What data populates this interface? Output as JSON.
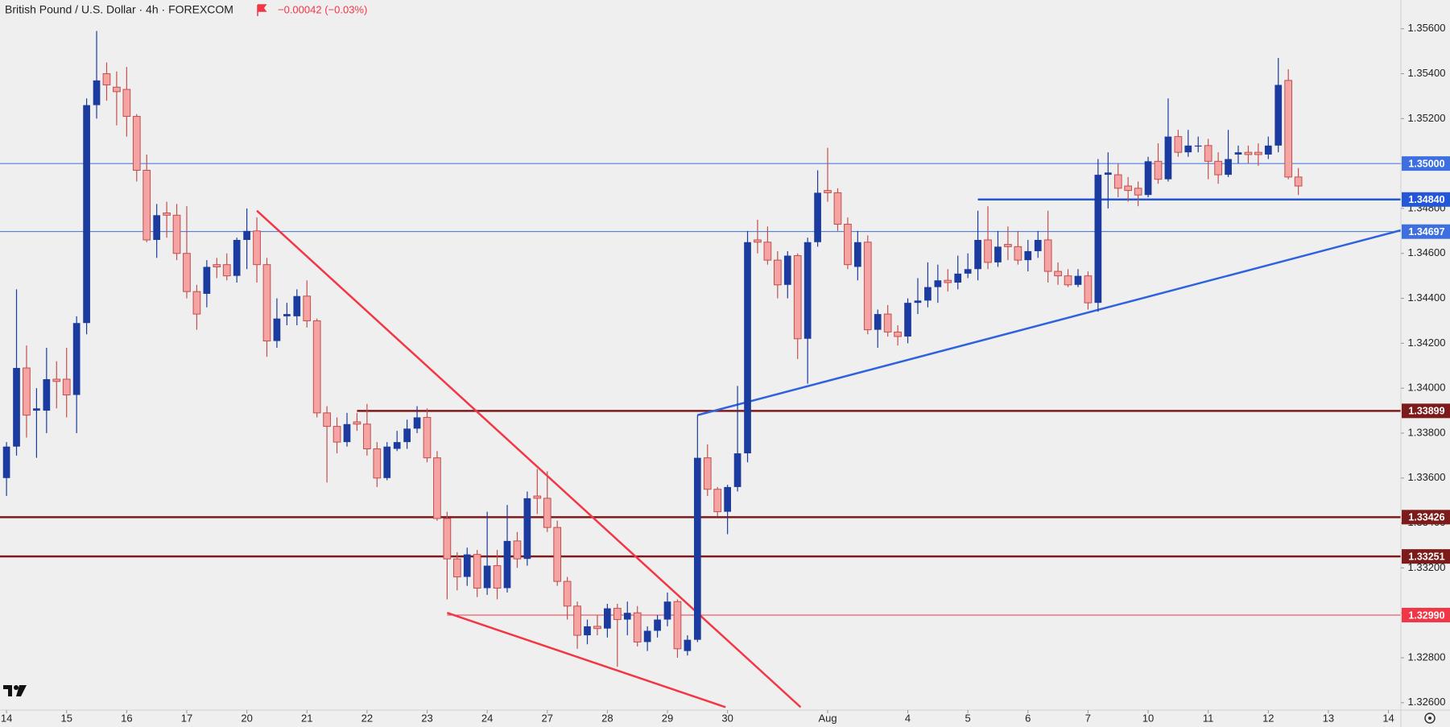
{
  "chart_data": {
    "type": "candlestick",
    "title": "British Pound / U.S. Dollar · 4h · FOREXCOM",
    "change": "−0.00042 (−0.03%)",
    "up_color": "#1c3b9e",
    "down_color": "#f5a3a3",
    "down_edge": "#c0504d",
    "xlim": [
      -0.65,
      139.24
    ],
    "ylim": [
      1.32567,
      1.35728
    ],
    "yticks": [
      {
        "value": 1.356,
        "label": "1.35600"
      },
      {
        "value": 1.354,
        "label": "1.35400"
      },
      {
        "value": 1.352,
        "label": "1.35200"
      },
      {
        "value": 1.35,
        "label": "1.35000"
      },
      {
        "value": 1.348,
        "label": "1.34800"
      },
      {
        "value": 1.346,
        "label": "1.34600"
      },
      {
        "value": 1.344,
        "label": "1.34400"
      },
      {
        "value": 1.342,
        "label": "1.34200"
      },
      {
        "value": 1.34,
        "label": "1.34000"
      },
      {
        "value": 1.338,
        "label": "1.33800"
      },
      {
        "value": 1.336,
        "label": "1.33600"
      },
      {
        "value": 1.334,
        "label": "1.33400"
      },
      {
        "value": 1.332,
        "label": "1.33200"
      },
      {
        "value": 1.33,
        "label": "1.33000"
      },
      {
        "value": 1.328,
        "label": "1.32800"
      },
      {
        "value": 1.326,
        "label": "1.32600"
      }
    ],
    "xticks": [
      {
        "value": 0,
        "label": "14"
      },
      {
        "value": 6,
        "label": "15"
      },
      {
        "value": 12,
        "label": "16"
      },
      {
        "value": 18,
        "label": "17"
      },
      {
        "value": 24,
        "label": "20"
      },
      {
        "value": 30,
        "label": "21"
      },
      {
        "value": 36,
        "label": "22"
      },
      {
        "value": 42,
        "label": "23"
      },
      {
        "value": 48,
        "label": "24"
      },
      {
        "value": 54,
        "label": "27"
      },
      {
        "value": 60,
        "label": "28"
      },
      {
        "value": 66,
        "label": "29"
      },
      {
        "value": 72,
        "label": "30"
      },
      {
        "value": 82,
        "label": "Aug"
      },
      {
        "value": 90,
        "label": "4"
      },
      {
        "value": 96,
        "label": "5"
      },
      {
        "value": 102,
        "label": "6"
      },
      {
        "value": 108,
        "label": "7"
      },
      {
        "value": 114,
        "label": "10"
      },
      {
        "value": 120,
        "label": "11"
      },
      {
        "value": 126,
        "label": "12"
      },
      {
        "value": 132,
        "label": "13"
      },
      {
        "value": 138,
        "label": "14"
      }
    ],
    "ohlc": [
      [
        1.336,
        1.3376,
        1.3352,
        1.3374
      ],
      [
        1.3374,
        1.3444,
        1.337,
        1.3409
      ],
      [
        1.3409,
        1.3419,
        1.3378,
        1.3388
      ],
      [
        1.339,
        1.34,
        1.3369,
        1.3391
      ],
      [
        1.339,
        1.3418,
        1.338,
        1.3404
      ],
      [
        1.3404,
        1.3412,
        1.3391,
        1.3403
      ],
      [
        1.3404,
        1.3418,
        1.3387,
        1.3397
      ],
      [
        1.3397,
        1.3432,
        1.338,
        1.3429
      ],
      [
        1.3429,
        1.3529,
        1.3424,
        1.3526
      ],
      [
        1.3526,
        1.3559,
        1.352,
        1.3537
      ],
      [
        1.354,
        1.3545,
        1.3528,
        1.3535
      ],
      [
        1.3534,
        1.3541,
        1.3517,
        1.3532
      ],
      [
        1.3533,
        1.3543,
        1.3512,
        1.3521
      ],
      [
        1.3521,
        1.3522,
        1.3492,
        1.3497
      ],
      [
        1.3497,
        1.3504,
        1.3465,
        1.3466
      ],
      [
        1.3466,
        1.3482,
        1.3458,
        1.3477
      ],
      [
        1.3478,
        1.3483,
        1.3467,
        1.3477
      ],
      [
        1.3477,
        1.3482,
        1.3457,
        1.346
      ],
      [
        1.346,
        1.3481,
        1.344,
        1.3443
      ],
      [
        1.3443,
        1.3446,
        1.3426,
        1.3433
      ],
      [
        1.3442,
        1.3457,
        1.3436,
        1.3454
      ],
      [
        1.3455,
        1.3458,
        1.3449,
        1.3454
      ],
      [
        1.3455,
        1.346,
        1.3448,
        1.345
      ],
      [
        1.345,
        1.3467,
        1.3447,
        1.3466
      ],
      [
        1.3466,
        1.348,
        1.3453,
        1.347
      ],
      [
        1.347,
        1.3476,
        1.3447,
        1.3455
      ],
      [
        1.3455,
        1.3458,
        1.3414,
        1.3421
      ],
      [
        1.3421,
        1.344,
        1.3418,
        1.3431
      ],
      [
        1.3432,
        1.3438,
        1.3428,
        1.3433
      ],
      [
        1.3432,
        1.3444,
        1.3428,
        1.3441
      ],
      [
        1.3441,
        1.3448,
        1.3427,
        1.343
      ],
      [
        1.343,
        1.3431,
        1.3387,
        1.3389
      ],
      [
        1.3389,
        1.3392,
        1.3358,
        1.3383
      ],
      [
        1.3383,
        1.3387,
        1.3371,
        1.3376
      ],
      [
        1.3376,
        1.3389,
        1.3374,
        1.3384
      ],
      [
        1.3385,
        1.3389,
        1.3381,
        1.3384
      ],
      [
        1.3384,
        1.3393,
        1.337,
        1.3373
      ],
      [
        1.3373,
        1.3376,
        1.3356,
        1.336
      ],
      [
        1.336,
        1.3376,
        1.3359,
        1.3374
      ],
      [
        1.3373,
        1.3381,
        1.3372,
        1.3376
      ],
      [
        1.3376,
        1.3386,
        1.3373,
        1.3382
      ],
      [
        1.3382,
        1.3392,
        1.338,
        1.3387
      ],
      [
        1.3387,
        1.3391,
        1.3367,
        1.3369
      ],
      [
        1.3369,
        1.3372,
        1.3341,
        1.3342
      ],
      [
        1.3342,
        1.3345,
        1.3306,
        1.3324
      ],
      [
        1.3324,
        1.3327,
        1.331,
        1.3316
      ],
      [
        1.3316,
        1.3329,
        1.3312,
        1.3326
      ],
      [
        1.3326,
        1.3328,
        1.3307,
        1.3311
      ],
      [
        1.3311,
        1.3345,
        1.3308,
        1.3321
      ],
      [
        1.3321,
        1.3328,
        1.3306,
        1.3311
      ],
      [
        1.3311,
        1.3348,
        1.3309,
        1.3332
      ],
      [
        1.3332,
        1.3336,
        1.332,
        1.3324
      ],
      [
        1.3324,
        1.3354,
        1.3321,
        1.3351
      ],
      [
        1.3352,
        1.3364,
        1.3344,
        1.3351
      ],
      [
        1.3351,
        1.3363,
        1.3336,
        1.3338
      ],
      [
        1.3338,
        1.3341,
        1.3312,
        1.3314
      ],
      [
        1.3314,
        1.3316,
        1.3297,
        1.3303
      ],
      [
        1.3303,
        1.3305,
        1.3284,
        1.329
      ],
      [
        1.329,
        1.3297,
        1.3286,
        1.3294
      ],
      [
        1.3294,
        1.3299,
        1.329,
        1.3293
      ],
      [
        1.3293,
        1.3304,
        1.3289,
        1.3302
      ],
      [
        1.3302,
        1.3304,
        1.3276,
        1.3297
      ],
      [
        1.3297,
        1.3305,
        1.329,
        1.33
      ],
      [
        1.33,
        1.3303,
        1.3285,
        1.3287
      ],
      [
        1.3287,
        1.3294,
        1.3283,
        1.3292
      ],
      [
        1.3292,
        1.3299,
        1.3289,
        1.3297
      ],
      [
        1.3297,
        1.3309,
        1.3294,
        1.3305
      ],
      [
        1.3305,
        1.3306,
        1.328,
        1.3284
      ],
      [
        1.3283,
        1.329,
        1.3281,
        1.3288
      ],
      [
        1.3288,
        1.3388,
        1.3287,
        1.3369
      ],
      [
        1.3369,
        1.3375,
        1.3352,
        1.3355
      ],
      [
        1.3355,
        1.3356,
        1.3343,
        1.3345
      ],
      [
        1.3345,
        1.3357,
        1.3335,
        1.3356
      ],
      [
        1.3356,
        1.3401,
        1.3354,
        1.3371
      ],
      [
        1.3371,
        1.347,
        1.3367,
        1.3465
      ],
      [
        1.3466,
        1.3475,
        1.346,
        1.3465
      ],
      [
        1.3465,
        1.3472,
        1.3455,
        1.3457
      ],
      [
        1.3457,
        1.3461,
        1.344,
        1.3446
      ],
      [
        1.3446,
        1.3461,
        1.344,
        1.3459
      ],
      [
        1.3459,
        1.346,
        1.3413,
        1.3422
      ],
      [
        1.3422,
        1.3467,
        1.3402,
        1.3465
      ],
      [
        1.3465,
        1.3497,
        1.3463,
        1.3487
      ],
      [
        1.3488,
        1.3507,
        1.3483,
        1.3487
      ],
      [
        1.3487,
        1.3489,
        1.347,
        1.3473
      ],
      [
        1.3473,
        1.3476,
        1.3453,
        1.3455
      ],
      [
        1.3454,
        1.347,
        1.3448,
        1.3465
      ],
      [
        1.3465,
        1.3468,
        1.3424,
        1.3426
      ],
      [
        1.3426,
        1.3435,
        1.3418,
        1.3433
      ],
      [
        1.3433,
        1.3437,
        1.3423,
        1.3425
      ],
      [
        1.3425,
        1.3428,
        1.3419,
        1.3423
      ],
      [
        1.3423,
        1.344,
        1.342,
        1.3438
      ],
      [
        1.3438,
        1.3449,
        1.3433,
        1.3439
      ],
      [
        1.3439,
        1.3456,
        1.3436,
        1.3445
      ],
      [
        1.3445,
        1.3455,
        1.3438,
        1.3448
      ],
      [
        1.3448,
        1.3453,
        1.3443,
        1.3447
      ],
      [
        1.3447,
        1.3459,
        1.3444,
        1.3451
      ],
      [
        1.3451,
        1.346,
        1.3449,
        1.3453
      ],
      [
        1.3453,
        1.3479,
        1.3448,
        1.3466
      ],
      [
        1.3466,
        1.3481,
        1.3453,
        1.3456
      ],
      [
        1.3456,
        1.347,
        1.3454,
        1.3463
      ],
      [
        1.3464,
        1.3472,
        1.3457,
        1.3463
      ],
      [
        1.3463,
        1.347,
        1.3455,
        1.3457
      ],
      [
        1.3457,
        1.3466,
        1.3452,
        1.3461
      ],
      [
        1.3461,
        1.347,
        1.3458,
        1.3466
      ],
      [
        1.3466,
        1.3479,
        1.3447,
        1.3452
      ],
      [
        1.3452,
        1.3456,
        1.3446,
        1.345
      ],
      [
        1.345,
        1.3453,
        1.3445,
        1.3446
      ],
      [
        1.3446,
        1.3453,
        1.3445,
        1.345
      ],
      [
        1.345,
        1.3452,
        1.3435,
        1.3438
      ],
      [
        1.3438,
        1.3502,
        1.3434,
        1.3495
      ],
      [
        1.3495,
        1.3505,
        1.348,
        1.3496
      ],
      [
        1.3495,
        1.35,
        1.3485,
        1.3489
      ],
      [
        1.349,
        1.3494,
        1.3483,
        1.3488
      ],
      [
        1.3489,
        1.3492,
        1.3481,
        1.3486
      ],
      [
        1.3486,
        1.3503,
        1.3485,
        1.3501
      ],
      [
        1.3501,
        1.3509,
        1.3491,
        1.3493
      ],
      [
        1.3493,
        1.3529,
        1.3492,
        1.3512
      ],
      [
        1.3512,
        1.3515,
        1.3503,
        1.3505
      ],
      [
        1.3505,
        1.3515,
        1.3503,
        1.3508
      ],
      [
        1.3508,
        1.3512,
        1.3505,
        1.3508
      ],
      [
        1.3508,
        1.3511,
        1.3493,
        1.3501
      ],
      [
        1.3501,
        1.3505,
        1.3491,
        1.3495
      ],
      [
        1.3495,
        1.3515,
        1.3494,
        1.3502
      ],
      [
        1.3504,
        1.3508,
        1.35,
        1.3505
      ],
      [
        1.3505,
        1.3508,
        1.35,
        1.3504
      ],
      [
        1.3505,
        1.3509,
        1.3499,
        1.3504
      ],
      [
        1.3504,
        1.3512,
        1.3502,
        1.3508
      ],
      [
        1.3508,
        1.3547,
        1.3505,
        1.3535
      ],
      [
        1.3537,
        1.3542,
        1.3493,
        1.3494
      ],
      [
        1.3494,
        1.3498,
        1.3486,
        1.349
      ]
    ],
    "levels": [
      {
        "value": 1.35,
        "label": "1.35000",
        "color": "#3d6fe0"
      },
      {
        "value": 1.3484,
        "label": "1.34840",
        "color": "#2457d8",
        "from": 97
      },
      {
        "value": 1.34697,
        "label": "1.34697",
        "color": "#3d6fe0"
      },
      {
        "value": 1.33899,
        "label": "1.33899",
        "color": "#7d1b1b",
        "from": 35
      },
      {
        "value": 1.33426,
        "label": "1.33426",
        "color": "#7d1b1b"
      },
      {
        "value": 1.33251,
        "label": "1.33251",
        "color": "#7d1b1b"
      },
      {
        "value": 1.3299,
        "label": "1.32990",
        "color": "#f23645",
        "from": 44
      }
    ],
    "trendlines": [
      {
        "color": "#f23645",
        "x": [
          25,
          79.3
        ],
        "y": [
          1.3479,
          1.3258
        ]
      },
      {
        "color": "#f23645",
        "x": [
          44,
          71.8
        ],
        "y": [
          1.33,
          1.3258
        ]
      },
      {
        "color": "#2f63de",
        "x": [
          69,
          139.24
        ],
        "y": [
          1.3388,
          1.34703
        ]
      }
    ]
  }
}
